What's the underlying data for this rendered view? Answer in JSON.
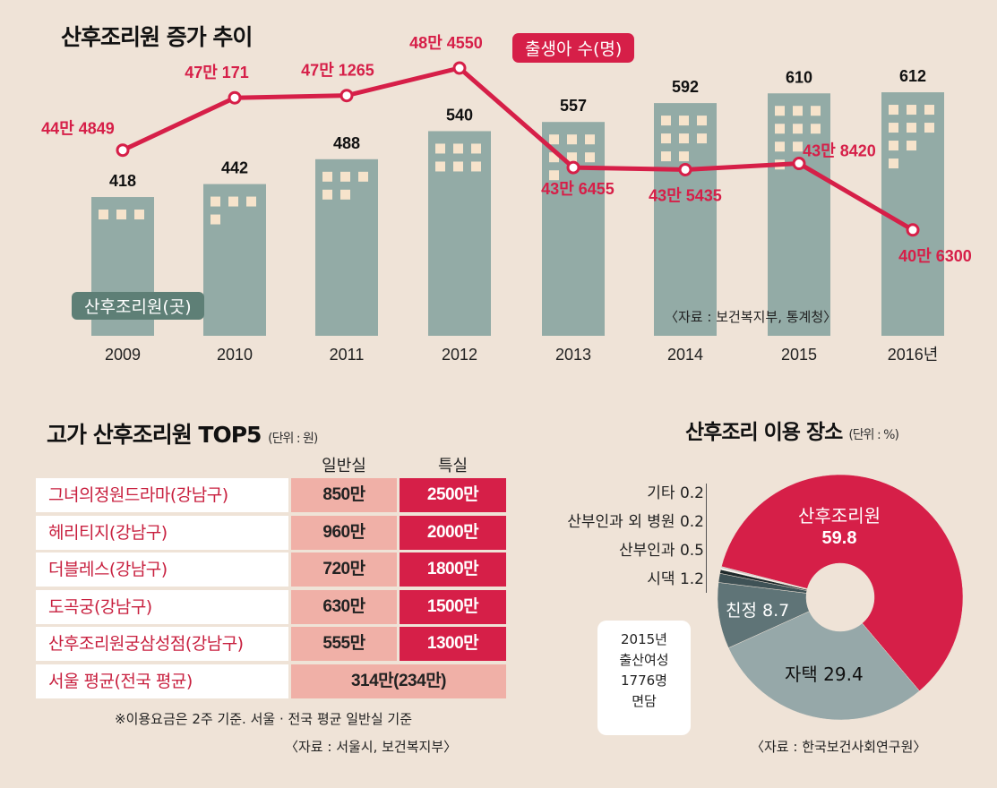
{
  "colors": {
    "background": "#efe3d7",
    "bar": "#93aba6",
    "window": "#f6e3cb",
    "line": "#d61f48",
    "pie_red": "#d61f48",
    "pie_gray": "#96a8a9",
    "pie_dark": "#5f7477",
    "pie_darker": "#3f5256",
    "general_cell": "#f0b0a7"
  },
  "chart_data": [
    {
      "type": "bar+line",
      "title": "산후조리원 증가 추이",
      "categories": [
        "2009",
        "2010",
        "2011",
        "2012",
        "2013",
        "2014",
        "2015",
        "2016년"
      ],
      "series": [
        {
          "name": "산후조리원(곳)",
          "type": "bar",
          "values": [
            418,
            442,
            488,
            540,
            557,
            592,
            610,
            612
          ]
        },
        {
          "name": "출생아 수(명)",
          "type": "line",
          "values": [
            444849,
            470171,
            471265,
            484550,
            436455,
            435435,
            438420,
            406300
          ],
          "labels": [
            "44만 4849",
            "47만 171",
            "47만 1265",
            "48만 4550",
            "43만 6455",
            "43만 5435",
            "43만 8420",
            "40만 6300"
          ]
        }
      ],
      "source": "〈자료 : 보건복지부, 통계청〉"
    },
    {
      "type": "table",
      "title": "고가 산후조리원 TOP5",
      "unit": "(단위 : 원)",
      "columns": [
        "일반실",
        "특실"
      ],
      "rows": [
        {
          "name": "그녀의정원드라마(강남구)",
          "general": "850만",
          "special": "2500만"
        },
        {
          "name": "헤리티지(강남구)",
          "general": "960만",
          "special": "2000만"
        },
        {
          "name": "더블레스(강남구)",
          "general": "720만",
          "special": "1800만"
        },
        {
          "name": "도곡궁(강남구)",
          "general": "630만",
          "special": "1500만"
        },
        {
          "name": "산후조리원궁삼성점(강남구)",
          "general": "555만",
          "special": "1300만"
        }
      ],
      "average": {
        "name": "서울 평균(전국 평균)",
        "value": "314만(234만)"
      },
      "note": "※이용요금은 2주 기준. 서울 · 전국 평균 일반실 기준",
      "source": "〈자료 : 서울시, 보건복지부〉"
    },
    {
      "type": "pie",
      "title": "산후조리 이용 장소",
      "unit": "(단위 : %)",
      "slices": [
        {
          "label": "산후조리원",
          "value": 59.8,
          "color": "#d61f48"
        },
        {
          "label": "자택",
          "value": 29.4,
          "color": "#96a8a9"
        },
        {
          "label": "친정",
          "value": 8.7,
          "color": "#5f7477"
        },
        {
          "label": "시댁",
          "value": 1.2,
          "color": "#3f5256"
        },
        {
          "label": "산부인과",
          "value": 0.5,
          "color": "#1f2a2c"
        },
        {
          "label": "산부인과 외 병원",
          "value": 0.2,
          "color": "#ffffff"
        },
        {
          "label": "기타",
          "value": 0.2,
          "color": "#c9c9c9"
        }
      ],
      "small_labels": [
        "기타 0.2",
        "산부인과 외 병원 0.2",
        "산부인과 0.5",
        "시댁 1.2"
      ],
      "inner_labels": {
        "main_name": "산후조리원",
        "main_value": "59.8",
        "home": "자택 29.4",
        "parents": "친정 8.7"
      },
      "survey_note": [
        "2015년",
        "출산여성",
        "1776명",
        "면담"
      ],
      "source": "〈자료 : 한국보건사회연구원〉"
    }
  ]
}
